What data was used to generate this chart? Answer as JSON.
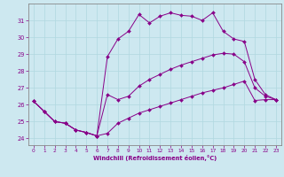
{
  "xlabel": "Windchill (Refroidissement éolien,°C)",
  "background_color": "#cde8f0",
  "grid_color": "#b0d8e0",
  "line_color": "#880088",
  "spine_color": "#888888",
  "xlim": [
    -0.5,
    23.5
  ],
  "ylim": [
    23.6,
    32.0
  ],
  "yticks": [
    24,
    25,
    26,
    27,
    28,
    29,
    30,
    31
  ],
  "xticks": [
    0,
    1,
    2,
    3,
    4,
    5,
    6,
    7,
    8,
    9,
    10,
    11,
    12,
    13,
    14,
    15,
    16,
    17,
    18,
    19,
    20,
    21,
    22,
    23
  ],
  "line1_x": [
    0,
    1,
    2,
    3,
    4,
    5,
    6,
    7,
    8,
    9,
    10,
    11,
    12,
    13,
    14,
    15,
    16,
    17,
    18,
    19,
    20,
    21,
    22,
    23
  ],
  "line1_y": [
    26.2,
    25.6,
    25.0,
    24.9,
    24.5,
    24.35,
    24.15,
    24.3,
    24.9,
    25.2,
    25.5,
    25.7,
    25.9,
    26.1,
    26.3,
    26.5,
    26.7,
    26.85,
    27.0,
    27.2,
    27.4,
    26.25,
    26.3,
    26.3
  ],
  "line2_x": [
    0,
    1,
    2,
    3,
    4,
    5,
    6,
    7,
    8,
    9,
    10,
    11,
    12,
    13,
    14,
    15,
    16,
    17,
    18,
    19,
    20,
    21,
    22,
    23
  ],
  "line2_y": [
    26.2,
    25.6,
    25.0,
    24.9,
    24.5,
    24.35,
    24.15,
    26.6,
    26.3,
    26.5,
    27.1,
    27.5,
    27.8,
    28.1,
    28.35,
    28.55,
    28.75,
    28.95,
    29.05,
    29.0,
    28.55,
    27.0,
    26.5,
    26.3
  ],
  "line3_x": [
    0,
    1,
    2,
    3,
    4,
    5,
    6,
    7,
    8,
    9,
    10,
    11,
    12,
    13,
    14,
    15,
    16,
    17,
    18,
    19,
    20,
    21,
    22,
    23
  ],
  "line3_y": [
    26.2,
    25.6,
    25.0,
    24.9,
    24.5,
    24.35,
    24.15,
    28.85,
    29.9,
    30.35,
    31.35,
    30.85,
    31.25,
    31.45,
    31.3,
    31.25,
    31.0,
    31.45,
    30.35,
    29.9,
    29.75,
    27.5,
    26.6,
    26.3
  ]
}
